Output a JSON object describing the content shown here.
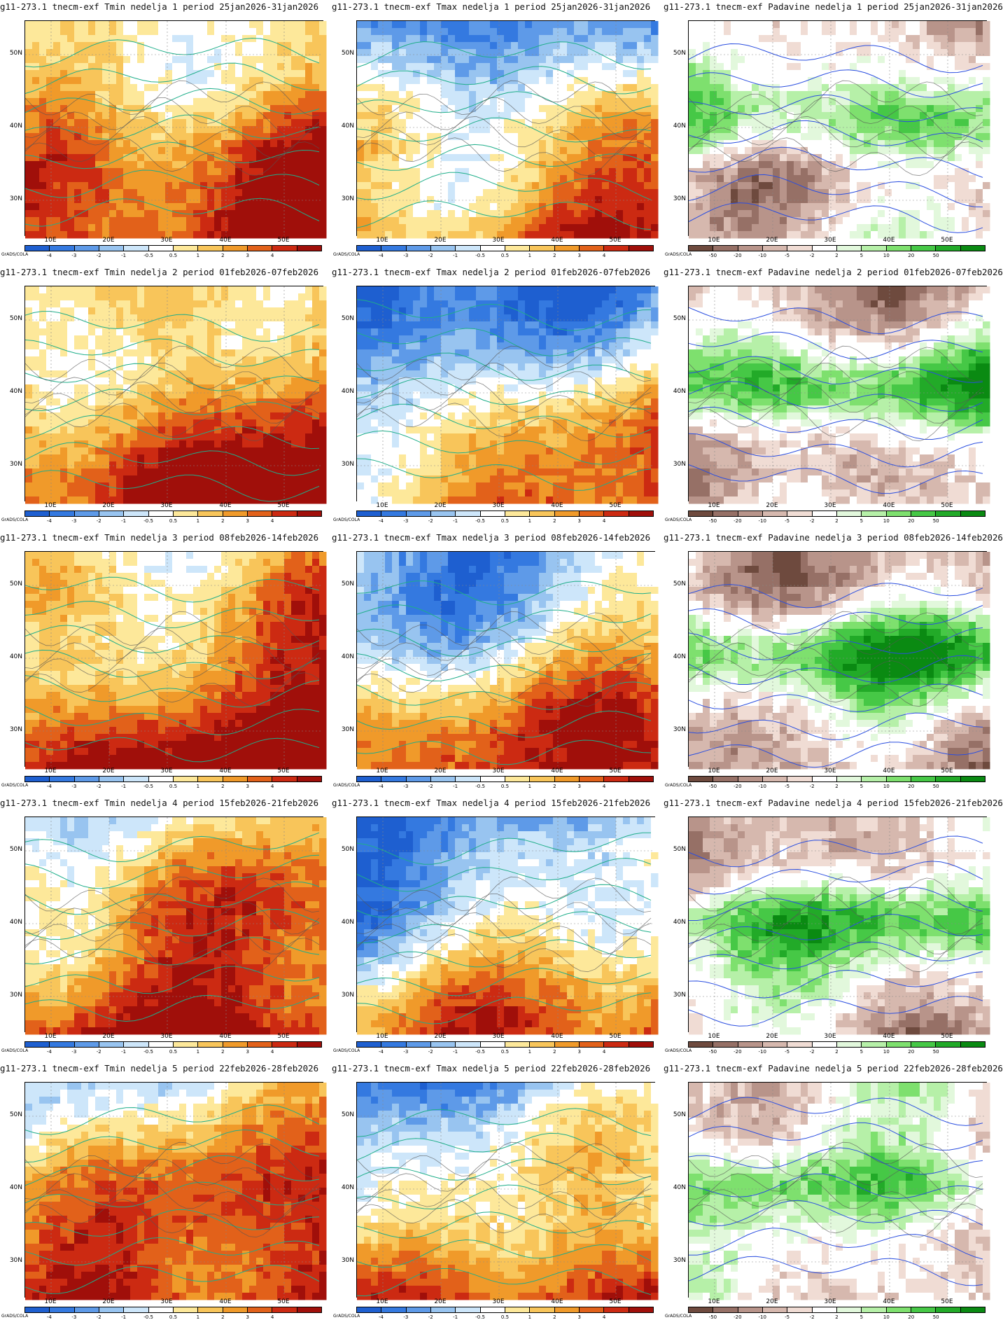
{
  "footer_credit": "GrADS/COLA",
  "lat_labels": [
    "50N",
    "40N",
    "30N"
  ],
  "lon_labels": [
    "10E",
    "20E",
    "30E",
    "40E",
    "50E"
  ],
  "colorbars": {
    "temperature": {
      "labels": [
        "-4",
        "-3",
        "-2",
        "-1",
        "-0.5",
        "0.5",
        "1",
        "2",
        "3",
        "4"
      ],
      "colors": [
        "#1e5fd0",
        "#3479e0",
        "#5e9ae8",
        "#98c4f0",
        "#cde6fa",
        "#ffffff",
        "#fde89a",
        "#f8c55a",
        "#f09a2a",
        "#e2611a",
        "#cc2a12",
        "#a00f0a"
      ]
    },
    "precipitation": {
      "labels": [
        "-50",
        "-20",
        "-10",
        "-5",
        "-2",
        "2",
        "5",
        "10",
        "20",
        "50"
      ],
      "colors": [
        "#6e4a3e",
        "#967066",
        "#b8948a",
        "#d6b8ae",
        "#f0dcd4",
        "#ffffff",
        "#e2f8dc",
        "#b6f0a8",
        "#7ee06e",
        "#46c846",
        "#22aa28",
        "#0a8a12"
      ]
    }
  },
  "rows": [
    {
      "panels": [
        {
          "title": "g11-273.1 tnecm-exf Tmin nedelja 1 period 25jan2026-31jan2026",
          "variable": "temperature"
        },
        {
          "title": "g11-273.1 tnecm-exf Tmax nedelja 1 period 25jan2026-31jan2026",
          "variable": "temperature"
        },
        {
          "title": "g11-273.1 tnecm-exf Padavine nedelja 1 period 25jan2026-31jan2026",
          "variable": "precipitation"
        }
      ]
    },
    {
      "panels": [
        {
          "title": "g11-273.1 tnecm-exf Tmin nedelja 2 period 01feb2026-07feb2026",
          "variable": "temperature"
        },
        {
          "title": "g11-273.1 tnecm-exf Tmax nedelja 2 period 01feb2026-07feb2026",
          "variable": "temperature"
        },
        {
          "title": "g11-273.1 tnecm-exf Padavine nedelja 2 period 01feb2026-07feb2026",
          "variable": "precipitation"
        }
      ]
    },
    {
      "panels": [
        {
          "title": "g11-273.1 tnecm-exf Tmin nedelja 3 period 08feb2026-14feb2026",
          "variable": "temperature"
        },
        {
          "title": "g11-273.1 tnecm-exf Tmax nedelja 3 period 08feb2026-14feb2026",
          "variable": "temperature"
        },
        {
          "title": "g11-273.1 tnecm-exf Padavine nedelja 3 period 08feb2026-14feb2026",
          "variable": "precipitation"
        }
      ]
    },
    {
      "panels": [
        {
          "title": "g11-273.1 tnecm-exf Tmin nedelja 4 period 15feb2026-21feb2026",
          "variable": "temperature"
        },
        {
          "title": "g11-273.1 tnecm-exf Tmax nedelja 4 period 15feb2026-21feb2026",
          "variable": "temperature"
        },
        {
          "title": "g11-273.1 tnecm-exf Padavine nedelja 4 period 15feb2026-21feb2026",
          "variable": "precipitation"
        }
      ]
    },
    {
      "panels": [
        {
          "title": "g11-273.1 tnecm-exf Tmin nedelja 5 period 22feb2026-28feb2026",
          "variable": "temperature"
        },
        {
          "title": "g11-273.1 tnecm-exf Tmax nedelja 5 period 22feb2026-28feb2026",
          "variable": "temperature"
        },
        {
          "title": "g11-273.1 tnecm-exf Padavine nedelja 5 period 22feb2026-28feb2026",
          "variable": "precipitation"
        }
      ]
    }
  ]
}
